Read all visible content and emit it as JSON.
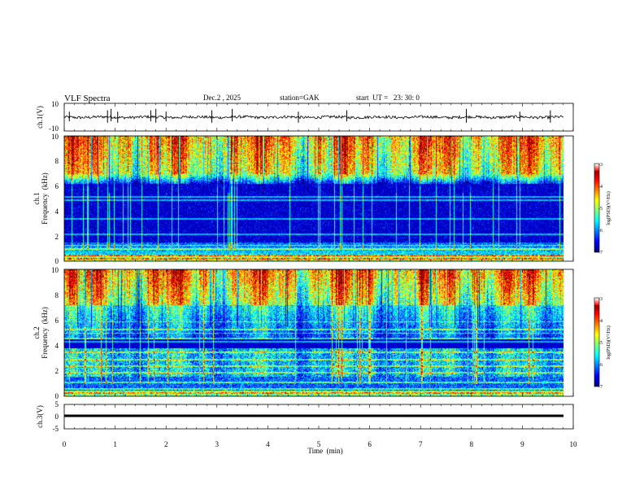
{
  "header": {
    "title": "VLF Spectra",
    "date": "Dec.2 , 2025",
    "station": "station=GAK",
    "start": "start  UT =   23: 30: 0"
  },
  "chart_data": [
    {
      "id": "ch1_waveform",
      "type": "line",
      "ylabel": "ch.1(V)",
      "ylim": [
        -10,
        10
      ],
      "yticks": [
        "10",
        "-10"
      ],
      "baseline_value": 0.0,
      "noise_amplitude": 1.0,
      "spikes_min": [
        0.1,
        0.85,
        0.92,
        1.05,
        1.7,
        1.8,
        2.0,
        2.9,
        3.3,
        4.6,
        5.55,
        7.9,
        8.95,
        9.55
      ]
    },
    {
      "id": "ch1_spectrogram",
      "type": "heatmap",
      "ylabel": "ch.1\nFrequency (kHz)",
      "ylabel_line1": "ch.1",
      "ylabel_line2": "Frequency  (kHz)",
      "ylim": [
        0,
        10
      ],
      "yticks": [
        "0",
        "2",
        "4",
        "6",
        "8",
        "10"
      ],
      "colorbar": {
        "label": "log(PSD)(V²/Hz)",
        "range": [
          -7,
          -3
        ],
        "ticks": [
          "-3",
          "-4",
          "-5",
          "-6",
          "-7"
        ]
      }
    },
    {
      "id": "ch2_spectrogram",
      "type": "heatmap",
      "ylabel_line1": "ch.2",
      "ylabel_line2": "Frequency  (kHz)",
      "ylim": [
        0,
        10
      ],
      "yticks": [
        "0",
        "2",
        "4",
        "6",
        "8",
        "10"
      ],
      "colorbar": {
        "label": "log(PSD)(V²/Hz)",
        "range": [
          -7,
          -3
        ],
        "ticks": [
          "-3",
          "-4",
          "-5",
          "-6",
          "-7"
        ]
      }
    },
    {
      "id": "ch3_waveform",
      "type": "line",
      "ylabel": "ch.3(V)",
      "ylim": [
        -5,
        5
      ],
      "yticks": [
        "5",
        "0",
        "-5"
      ],
      "baseline_value": -1.0
    }
  ],
  "x_axis": {
    "label": "Time  (min)",
    "range": [
      0,
      10
    ],
    "data_end": 9.82,
    "ticks": [
      "0",
      "1",
      "2",
      "3",
      "4",
      "5",
      "6",
      "7",
      "8",
      "9",
      "10"
    ]
  }
}
